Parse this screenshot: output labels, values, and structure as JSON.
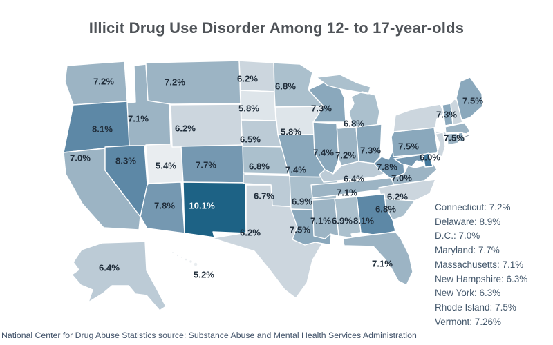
{
  "title": "Illicit Drug Use Disorder Among 12- to 17-year-olds",
  "source_note": "National Center for Drug Abuse Statistics source: Substance Abuse and Mental Health Services Administration",
  "chart_data": {
    "type": "heatmap",
    "subtype": "us-state-choropleth",
    "title": "Illicit Drug Use Disorder Among 12- to 17-year-olds",
    "unit": "percent of 12- to 17-year-olds",
    "legend_position": "right-side text list for small states",
    "label_colors": {
      "dark": "#212e3b",
      "light": "#ffffff"
    },
    "color_scale": {
      "stops": [
        {
          "min": 10.0,
          "color": "#1d6285"
        },
        {
          "min": 8.5,
          "color": "#44799c"
        },
        {
          "min": 8.0,
          "color": "#5d88a6"
        },
        {
          "min": 7.6,
          "color": "#7598b1"
        },
        {
          "min": 7.25,
          "color": "#8aa8bc"
        },
        {
          "min": 7.0,
          "color": "#9cb4c4"
        },
        {
          "min": 6.75,
          "color": "#abc0cd"
        },
        {
          "min": 6.4,
          "color": "#bccbd6"
        },
        {
          "min": 6.0,
          "color": "#ccd6de"
        },
        {
          "min": 5.6,
          "color": "#dee5ea"
        },
        {
          "min": 0,
          "color": "#e9edf0"
        }
      ]
    },
    "states": [
      {
        "abbr": "WA",
        "name": "Washington",
        "value": 7.2,
        "map_label": "7.2%"
      },
      {
        "abbr": "OR",
        "name": "Oregon",
        "value": 8.1,
        "map_label": "8.1%"
      },
      {
        "abbr": "CA",
        "name": "California",
        "value": 7.0,
        "map_label": "7.0%"
      },
      {
        "abbr": "NV",
        "name": "Nevada",
        "value": 8.3,
        "map_label": "8.3%"
      },
      {
        "abbr": "ID",
        "name": "Idaho",
        "value": 7.1,
        "map_label": "7.1%"
      },
      {
        "abbr": "UT",
        "name": "Utah",
        "value": 5.4,
        "map_label": "5.4%"
      },
      {
        "abbr": "AZ",
        "name": "Arizona",
        "value": 7.8,
        "map_label": "7.8%"
      },
      {
        "abbr": "MT",
        "name": "Montana",
        "value": 7.2,
        "map_label": "7.2%"
      },
      {
        "abbr": "WY",
        "name": "Wyoming",
        "value": 6.2,
        "map_label": "6.2%"
      },
      {
        "abbr": "CO",
        "name": "Colorado",
        "value": 7.7,
        "map_label": "7.7%"
      },
      {
        "abbr": "NM",
        "name": "New Mexico",
        "value": 10.1,
        "map_label": "10.1%"
      },
      {
        "abbr": "ND",
        "name": "North Dakota",
        "value": 6.2,
        "map_label": "6.2%"
      },
      {
        "abbr": "SD",
        "name": "South Dakota",
        "value": 5.8,
        "map_label": "5.8%"
      },
      {
        "abbr": "NE",
        "name": "Nebraska",
        "value": 6.5,
        "map_label": "6.5%"
      },
      {
        "abbr": "KS",
        "name": "Kansas",
        "value": 6.8,
        "map_label": "6.8%"
      },
      {
        "abbr": "OK",
        "name": "Oklahoma",
        "value": 6.7,
        "map_label": "6.7%"
      },
      {
        "abbr": "TX",
        "name": "Texas",
        "value": 6.2,
        "map_label": "6.2%"
      },
      {
        "abbr": "MN",
        "name": "Minnesota",
        "value": 6.8,
        "map_label": "6.8%"
      },
      {
        "abbr": "IA",
        "name": "Iowa",
        "value": 5.8,
        "map_label": "5.8%"
      },
      {
        "abbr": "MO",
        "name": "Missouri",
        "value": 7.4,
        "map_label": "7.4%"
      },
      {
        "abbr": "AR",
        "name": "Arkansas",
        "value": 6.9,
        "map_label": "6.9%"
      },
      {
        "abbr": "LA",
        "name": "Louisiana",
        "value": 7.5,
        "map_label": "7.5%"
      },
      {
        "abbr": "WI",
        "name": "Wisconsin",
        "value": 7.3,
        "map_label": "7.3%"
      },
      {
        "abbr": "MI",
        "name": "Michigan",
        "value": 6.8,
        "map_label": "6.8%"
      },
      {
        "abbr": "IL",
        "name": "Illinois",
        "value": 7.4,
        "map_label": "7.4%"
      },
      {
        "abbr": "IN",
        "name": "Indiana",
        "value": 7.2,
        "map_label": "7.2%"
      },
      {
        "abbr": "OH",
        "name": "Ohio",
        "value": 7.3,
        "map_label": "7.3%"
      },
      {
        "abbr": "KY",
        "name": "Kentucky",
        "value": 6.4,
        "map_label": "6.4%"
      },
      {
        "abbr": "TN",
        "name": "Tennessee",
        "value": 7.1,
        "map_label": "7.1%"
      },
      {
        "abbr": "WV",
        "name": "West Virginia",
        "value": 7.8,
        "map_label": "7.8%"
      },
      {
        "abbr": "VA",
        "name": "Virginia",
        "value": 7.0,
        "map_label": "7.0%"
      },
      {
        "abbr": "NC",
        "name": "North Carolina",
        "value": 6.2,
        "map_label": "6.2%"
      },
      {
        "abbr": "SC",
        "name": "South Carolina",
        "value": 6.8,
        "map_label": "6.8%"
      },
      {
        "abbr": "GA",
        "name": "Georgia",
        "value": 8.1,
        "map_label": "8.1%"
      },
      {
        "abbr": "AL",
        "name": "Alabama",
        "value": 6.9,
        "map_label": "6.9%"
      },
      {
        "abbr": "MS",
        "name": "Mississippi",
        "value": 7.1,
        "map_label": "7.1%"
      },
      {
        "abbr": "FL",
        "name": "Florida",
        "value": 7.1,
        "map_label": "7.1%"
      },
      {
        "abbr": "PA",
        "name": "Pennsylvania",
        "value": 7.5,
        "map_label": "7.5%"
      },
      {
        "abbr": "NY",
        "name": "New York",
        "value": 6.3,
        "map_label": null
      },
      {
        "abbr": "NJ",
        "name": "New Jersey",
        "value": 6.0,
        "map_label": "6.0%"
      },
      {
        "abbr": "MD",
        "name": "Maryland",
        "value": 7.7,
        "map_label": null
      },
      {
        "abbr": "DE",
        "name": "Delaware",
        "value": 8.9,
        "map_label": null
      },
      {
        "abbr": "DC",
        "name": "D.C.",
        "value": 7.0,
        "map_label": null
      },
      {
        "abbr": "VT",
        "name": "Vermont",
        "value": 7.26,
        "map_label": "7.3%"
      },
      {
        "abbr": "NH",
        "name": "New Hampshire",
        "value": 6.3,
        "map_label": null
      },
      {
        "abbr": "ME",
        "name": "Maine",
        "value": 7.5,
        "map_label": "7.5%"
      },
      {
        "abbr": "MA",
        "name": "Massachusetts",
        "value": 7.1,
        "map_label": null
      },
      {
        "abbr": "CT",
        "name": "Connecticut",
        "value": 7.2,
        "map_label": null
      },
      {
        "abbr": "RI",
        "name": "Rhode Island",
        "value": 7.5,
        "map_label": "7.5%"
      },
      {
        "abbr": "AK",
        "name": "Alaska",
        "value": 6.4,
        "map_label": "6.4%"
      },
      {
        "abbr": "HI",
        "name": "Hawaii",
        "value": 5.2,
        "map_label": "5.2%"
      }
    ],
    "side_list": [
      {
        "state": "Connecticut",
        "value": 7.2,
        "text": "Connecticut: 7.2%"
      },
      {
        "state": "Delaware",
        "value": 8.9,
        "text": "Delaware: 8.9%"
      },
      {
        "state": "D.C.",
        "value": 7.0,
        "text": "D.C.: 7.0%"
      },
      {
        "state": "Maryland",
        "value": 7.7,
        "text": "Maryland: 7.7%"
      },
      {
        "state": "Massachusetts",
        "value": 7.1,
        "text": "Massachusetts: 7.1%"
      },
      {
        "state": "New Hampshire",
        "value": 6.3,
        "text": "New Hampshire: 6.3%"
      },
      {
        "state": "New York",
        "value": 6.3,
        "text": "New York: 6.3%"
      },
      {
        "state": "Rhode Island",
        "value": 7.5,
        "text": "Rhode Island: 7.5%"
      },
      {
        "state": "Vermont",
        "value": 7.26,
        "text": "Vermont: 7.26%"
      }
    ]
  }
}
